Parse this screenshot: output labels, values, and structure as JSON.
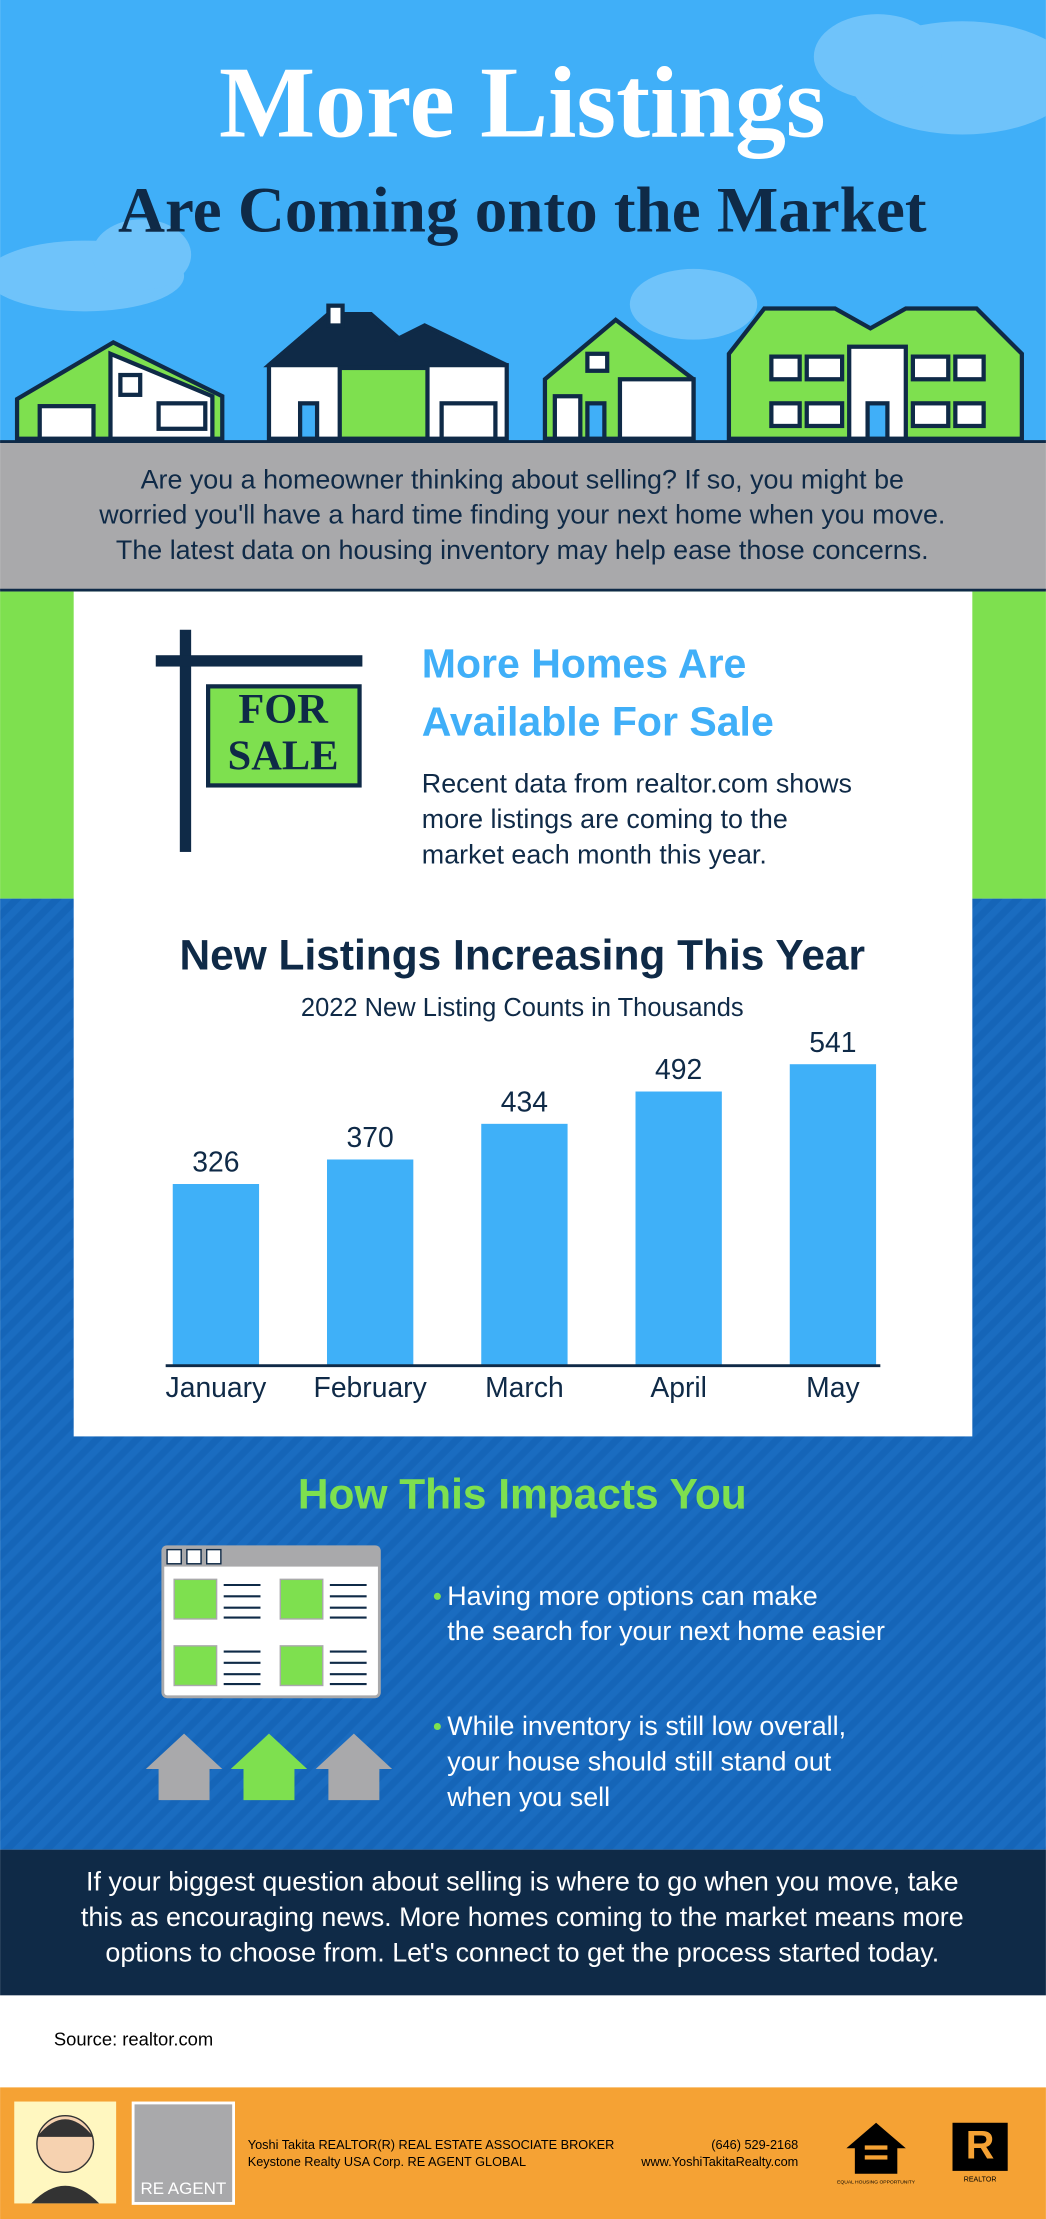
{
  "header": {
    "title": "More Listings",
    "subtitle": "Are Coming onto the Market"
  },
  "intro": [
    "Are you a homeowner thinking about selling? If so, you might be",
    "worried you'll have a hard time finding your next home when you move.",
    "The latest data on housing inventory may help ease those concerns."
  ],
  "sign": {
    "line1": "FOR",
    "line2": "SALE"
  },
  "feature": {
    "heading": [
      "More Homes Are",
      "Available For Sale"
    ],
    "body": [
      "Recent data from realtor.com shows",
      "more listings are coming to the",
      "market each month this year."
    ]
  },
  "chart_data": {
    "type": "bar",
    "title": "New Listings Increasing This Year",
    "subtitle": "2022 New Listing Counts in Thousands",
    "categories": [
      "January",
      "February",
      "March",
      "April",
      "May"
    ],
    "values": [
      326,
      370,
      434,
      492,
      541
    ],
    "color": "#3fb0f8"
  },
  "impact": {
    "title": "How This Impacts You",
    "bullets": [
      [
        "Having more options can make",
        "the search for your next home easier"
      ],
      [
        "While inventory is still low overall,",
        "your house should still stand out",
        "when you sell"
      ]
    ]
  },
  "closing": [
    "If your biggest question about selling is where to go when you move, take",
    "this as encouraging news. More homes coming to the market means more",
    "options to choose from. Let's connect to get the process started today."
  ],
  "source": "Source: realtor.com",
  "footer": {
    "agent": [
      "Yoshi Takita REALTOR(R) REAL ESTATE ASSOCIATE BROKER",
      "Keystone Realty USA Corp.  RE AGENT GLOBAL"
    ],
    "phone": "(646) 529-2168",
    "website": "www.YoshiTakitaRealty.com",
    "logo": "RE AGENT",
    "equal_housing": "EQUAL HOUSING OPPORTUNITY",
    "realtor": "REALTOR"
  }
}
